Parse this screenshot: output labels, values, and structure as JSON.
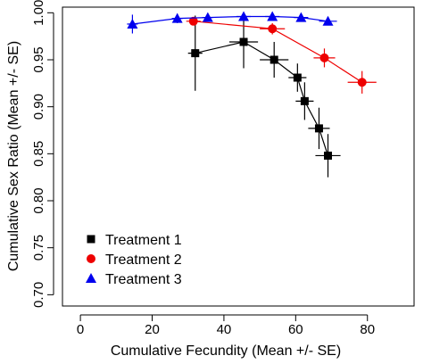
{
  "chart_data": {
    "type": "scatter",
    "title": "",
    "xlabel": "Cumulative Fecundity (Mean +/- SE)",
    "ylabel": "Cumulative Sex Ratio (Mean +/- SE)",
    "xlim": [
      -5,
      93
    ],
    "ylim": [
      0.688,
      1.006
    ],
    "xticks": [
      0,
      20,
      40,
      60,
      80
    ],
    "yticks": [
      0.7,
      0.75,
      0.8,
      0.85,
      0.9,
      0.95,
      1.0
    ],
    "xtick_labels": [
      "0",
      "20",
      "40",
      "60",
      "80"
    ],
    "ytick_labels": [
      "0.70",
      "0.75",
      "0.80",
      "0.85",
      "0.90",
      "0.95",
      "1.00"
    ],
    "grid": false,
    "legend_position": "bottom-left",
    "series": [
      {
        "name": "Treatment 1",
        "color": "#000000",
        "marker": "square",
        "points": [
          {
            "x": 32.0,
            "y": 0.957,
            "xerr": 2.0,
            "yerr": 0.04
          },
          {
            "x": 45.5,
            "y": 0.969,
            "xerr": 4.0,
            "yerr": 0.028
          },
          {
            "x": 54.0,
            "y": 0.95,
            "xerr": 4.0,
            "yerr": 0.019
          },
          {
            "x": 60.5,
            "y": 0.931,
            "xerr": 2.5,
            "yerr": 0.015
          },
          {
            "x": 62.5,
            "y": 0.906,
            "xerr": 2.5,
            "yerr": 0.02
          },
          {
            "x": 66.5,
            "y": 0.877,
            "xerr": 3.0,
            "yerr": 0.022
          },
          {
            "x": 69.0,
            "y": 0.848,
            "xerr": 3.5,
            "yerr": 0.023
          }
        ]
      },
      {
        "name": "Treatment 2",
        "color": "#ee0000",
        "marker": "circle",
        "points": [
          {
            "x": 31.5,
            "y": 0.991,
            "xerr": 2.0,
            "yerr": 0.004
          },
          {
            "x": 53.5,
            "y": 0.983,
            "xerr": 3.5,
            "yerr": 0.006
          },
          {
            "x": 68.0,
            "y": 0.952,
            "xerr": 3.0,
            "yerr": 0.01
          },
          {
            "x": 78.5,
            "y": 0.926,
            "xerr": 4.0,
            "yerr": 0.012
          }
        ]
      },
      {
        "name": "Treatment 3",
        "color": "#0000ee",
        "marker": "triangle",
        "points": [
          {
            "x": 14.5,
            "y": 0.988,
            "xerr": 1.5,
            "yerr": 0.01
          },
          {
            "x": 27.0,
            "y": 0.994,
            "xerr": 1.5,
            "yerr": 0.005
          },
          {
            "x": 35.5,
            "y": 0.995,
            "xerr": 1.5,
            "yerr": 0.004
          },
          {
            "x": 45.5,
            "y": 0.996,
            "xerr": 2.0,
            "yerr": 0.004
          },
          {
            "x": 53.5,
            "y": 0.996,
            "xerr": 2.0,
            "yerr": 0.003
          },
          {
            "x": 61.5,
            "y": 0.995,
            "xerr": 2.0,
            "yerr": 0.004
          },
          {
            "x": 69.0,
            "y": 0.991,
            "xerr": 2.5,
            "yerr": 0.004
          }
        ]
      }
    ]
  }
}
